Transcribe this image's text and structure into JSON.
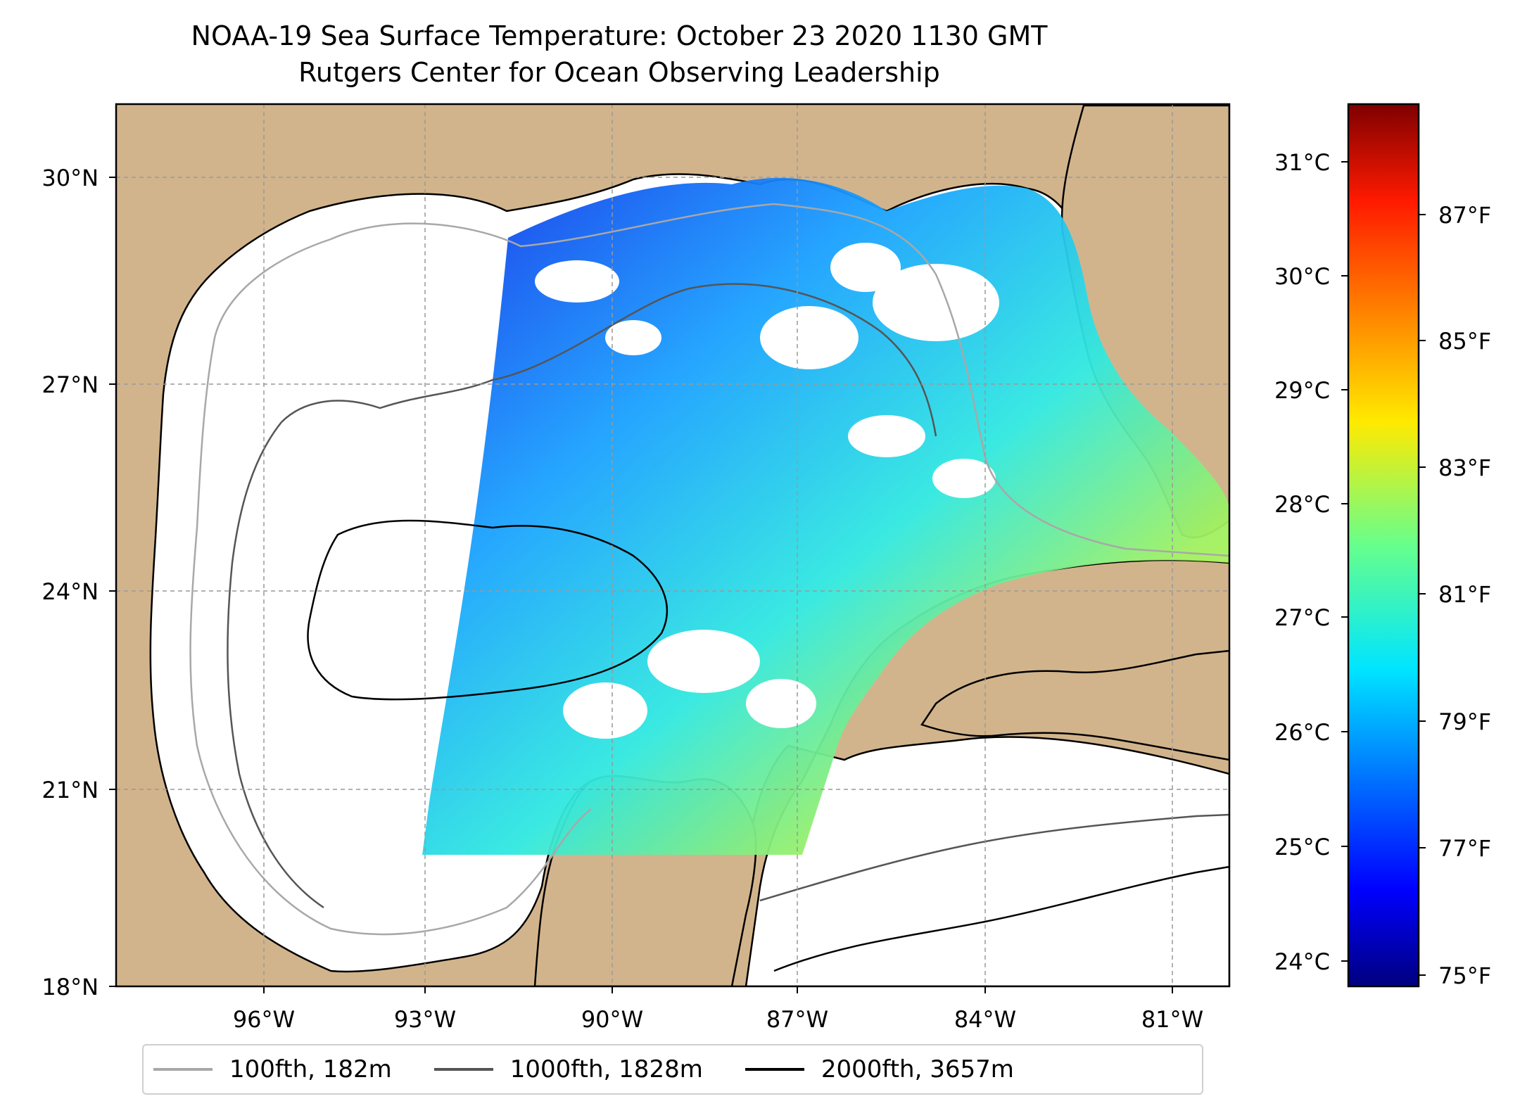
{
  "title": "NOAA-19 Sea Surface Temperature: October 23 2020 1130 GMT",
  "subtitle": "Rutgers Center for Ocean Observing Leadership",
  "map": {
    "lon_range": [
      -98.3,
      -80.4
    ],
    "lat_range": [
      18,
      31.3
    ],
    "lat_ticks": [
      "18°N",
      "21°N",
      "24°N",
      "27°N",
      "30°N"
    ],
    "lon_ticks": [
      "96°W",
      "93°W",
      "90°W",
      "87°W",
      "84°W",
      "81°W"
    ],
    "grid": "dashed",
    "colors": {
      "land": "#d2b48c",
      "no_data": "#ffffff",
      "lakes": "#9ab8dc"
    }
  },
  "colorbar": {
    "colormap": "jet",
    "celsius_ticks": [
      "24°C",
      "25°C",
      "26°C",
      "27°C",
      "28°C",
      "29°C",
      "30°C",
      "31°C"
    ],
    "fahrenheit_ticks": [
      "75°F",
      "77°F",
      "79°F",
      "81°F",
      "83°F",
      "85°F",
      "87°F"
    ]
  },
  "legend": [
    {
      "label": "100fth, 182m",
      "color": "#a8a8a8"
    },
    {
      "label": "1000fth, 1828m",
      "color": "#555555"
    },
    {
      "label": "2000fth, 3657m",
      "color": "#000000"
    }
  ]
}
